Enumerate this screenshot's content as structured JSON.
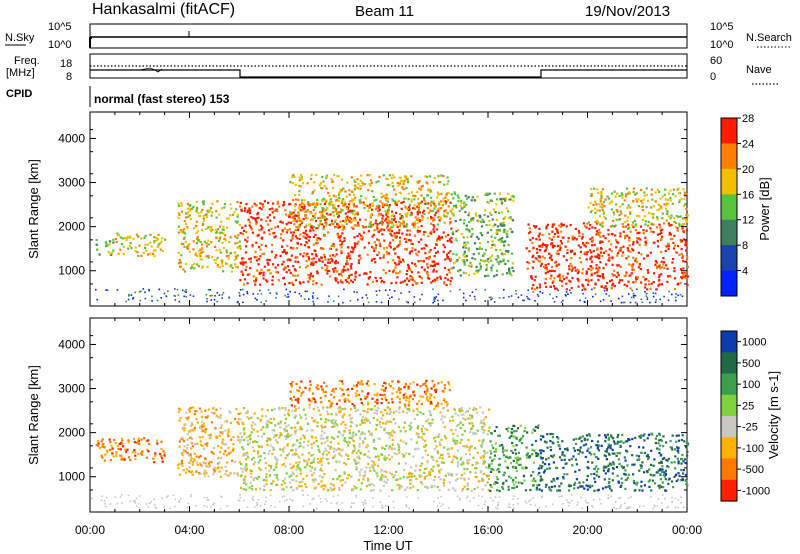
{
  "header": {
    "station": "Hankasalmi (fitACF)",
    "beam": "Beam 11",
    "date": "19/Nov/2013"
  },
  "noise_panel": {
    "left_label": "N.Sky",
    "left_ticks": [
      "10^5",
      "10^0"
    ],
    "right_label": "N.Search",
    "right_ticks": [
      "10^5",
      "10^0"
    ]
  },
  "freq_panel": {
    "left_label_1": "Freq.",
    "left_label_2": "[MHz]",
    "left_ticks": [
      "18",
      "8"
    ],
    "right_label": "Nave",
    "right_ticks": [
      "60",
      "0"
    ]
  },
  "cpid": {
    "label": "CPID",
    "text": "normal (fast stereo) 153"
  },
  "x_axis": {
    "title": "Time UT",
    "ticks": [
      "00:00",
      "04:00",
      "08:00",
      "12:00",
      "16:00",
      "20:00",
      "00:00"
    ]
  },
  "chart_data": [
    {
      "type": "heatmap",
      "title": "Power",
      "ylabel": "Slant Range [km]",
      "xlabel": "Time UT",
      "xlim": [
        0,
        24
      ],
      "ylim": [
        200,
        4600
      ],
      "yticks": [
        "1000",
        "2000",
        "3000",
        "4000"
      ],
      "colorbar": {
        "label": "Power [dB]",
        "ticks": [
          "4",
          "8",
          "12",
          "16",
          "20",
          "24",
          "28"
        ],
        "colors": [
          "#0022ff",
          "#1b43b0",
          "#3f7f60",
          "#57c43c",
          "#f2c000",
          "#ff7f00",
          "#ff1a00"
        ]
      },
      "regions": [
        {
          "t": [
            0.2,
            0.9
          ],
          "r": [
            1350,
            1750
          ],
          "level": 3
        },
        {
          "t": [
            1.0,
            3.0
          ],
          "r": [
            1350,
            1900
          ],
          "level": 4
        },
        {
          "t": [
            3.5,
            6.0
          ],
          "r": [
            1000,
            2600
          ],
          "level": 4
        },
        {
          "t": [
            6.0,
            14.5
          ],
          "r": [
            700,
            2600
          ],
          "level": 6
        },
        {
          "t": [
            8.0,
            14.5
          ],
          "r": [
            2000,
            3200
          ],
          "level": 4
        },
        {
          "t": [
            14.5,
            17.0
          ],
          "r": [
            900,
            2800
          ],
          "level": 3
        },
        {
          "t": [
            17.5,
            24.0
          ],
          "r": [
            600,
            2100
          ],
          "level": 6
        },
        {
          "t": [
            20.0,
            24.0
          ],
          "r": [
            2000,
            2900
          ],
          "level": 4
        }
      ]
    },
    {
      "type": "heatmap",
      "title": "Velocity",
      "ylabel": "Slant Range [km]",
      "xlabel": "Time UT",
      "xlim": [
        0,
        24
      ],
      "ylim": [
        200,
        4600
      ],
      "yticks": [
        "1000",
        "2000",
        "3000",
        "4000"
      ],
      "colorbar": {
        "label": "Velocity [m s-1]",
        "ticks": [
          "1000",
          "500",
          "100",
          "25",
          "-25",
          "-100",
          "-500",
          "-1000"
        ],
        "colors": [
          "#0b3cb0",
          "#1e6a44",
          "#3aa04a",
          "#7fd23c",
          "#c8c8c0",
          "#ffb000",
          "#ff7800",
          "#ff2000"
        ]
      },
      "regions": [
        {
          "t": [
            0.2,
            3.0
          ],
          "r": [
            1350,
            1900
          ],
          "level": 6
        },
        {
          "t": [
            3.5,
            6.0
          ],
          "r": [
            1000,
            2600
          ],
          "level": 5
        },
        {
          "t": [
            6.0,
            16.0
          ],
          "r": [
            700,
            2600
          ],
          "level": 4
        },
        {
          "t": [
            8.0,
            14.5
          ],
          "r": [
            2600,
            3200
          ],
          "level": 6
        },
        {
          "t": [
            16.0,
            18.0
          ],
          "r": [
            700,
            2200
          ],
          "level": 2
        },
        {
          "t": [
            18.0,
            24.0
          ],
          "r": [
            700,
            2000
          ],
          "level": 1
        }
      ]
    }
  ]
}
